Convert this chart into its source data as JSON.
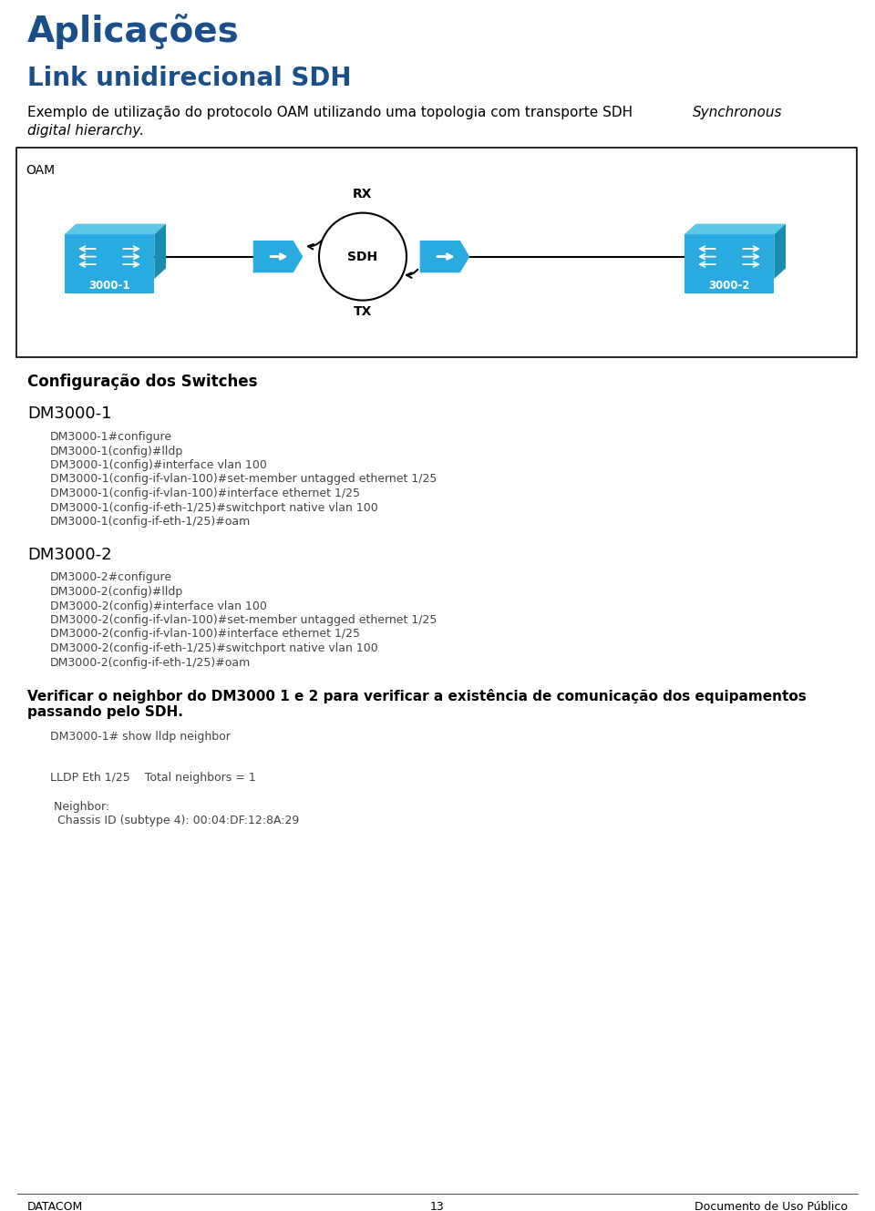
{
  "title1": "Aplicações",
  "title2": "Link unidirecional SDH",
  "intro_normal": "Exemplo de utilização do protocolo OAM utilizando uma topologia com transporte SDH ",
  "intro_italic": "Synchronous",
  "intro_italic2": "digital hierarchy.",
  "section_title": "Configuração dos Switches",
  "dm1_label": "DM3000-1",
  "dm1_commands": [
    "DM3000-1#configure",
    "DM3000-1(config)#lldp",
    "DM3000-1(config)#interface vlan 100",
    "DM3000-1(config-if-vlan-100)#set-member untagged ethernet 1/25",
    "DM3000-1(config-if-vlan-100)#interface ethernet 1/25",
    "DM3000-1(config-if-eth-1/25)#switchport native vlan 100",
    "DM3000-1(config-if-eth-1/25)#oam"
  ],
  "dm2_label": "DM3000-2",
  "dm2_commands": [
    "DM3000-2#configure",
    "DM3000-2(config)#lldp",
    "DM3000-2(config)#interface vlan 100",
    "DM3000-2(config-if-vlan-100)#set-member untagged ethernet 1/25",
    "DM3000-2(config-if-vlan-100)#interface ethernet 1/25",
    "DM3000-2(config-if-eth-1/25)#switchport native vlan 100",
    "DM3000-2(config-if-eth-1/25)#oam"
  ],
  "verify_line1": "Verificar o neighbor do DM3000 1 e 2 para verificar a existência de comunicação dos equipamentos",
  "verify_line2": "passando pelo SDH.",
  "show_cmd": "DM3000-1# show lldp neighbor",
  "lldp_lines": [
    "",
    "LLDP Eth 1/25    Total neighbors = 1",
    "",
    " Neighbor:",
    "  Chassis ID (subtype 4): 00:04:DF:12:8A:29"
  ],
  "footer_left": "DATACOM",
  "footer_center": "13",
  "footer_right": "Documento de Uso Público",
  "blue_color": "#1B4F8A",
  "cyan_color": "#29ABE2",
  "text_color": "#000000",
  "mono_color": "#444444"
}
